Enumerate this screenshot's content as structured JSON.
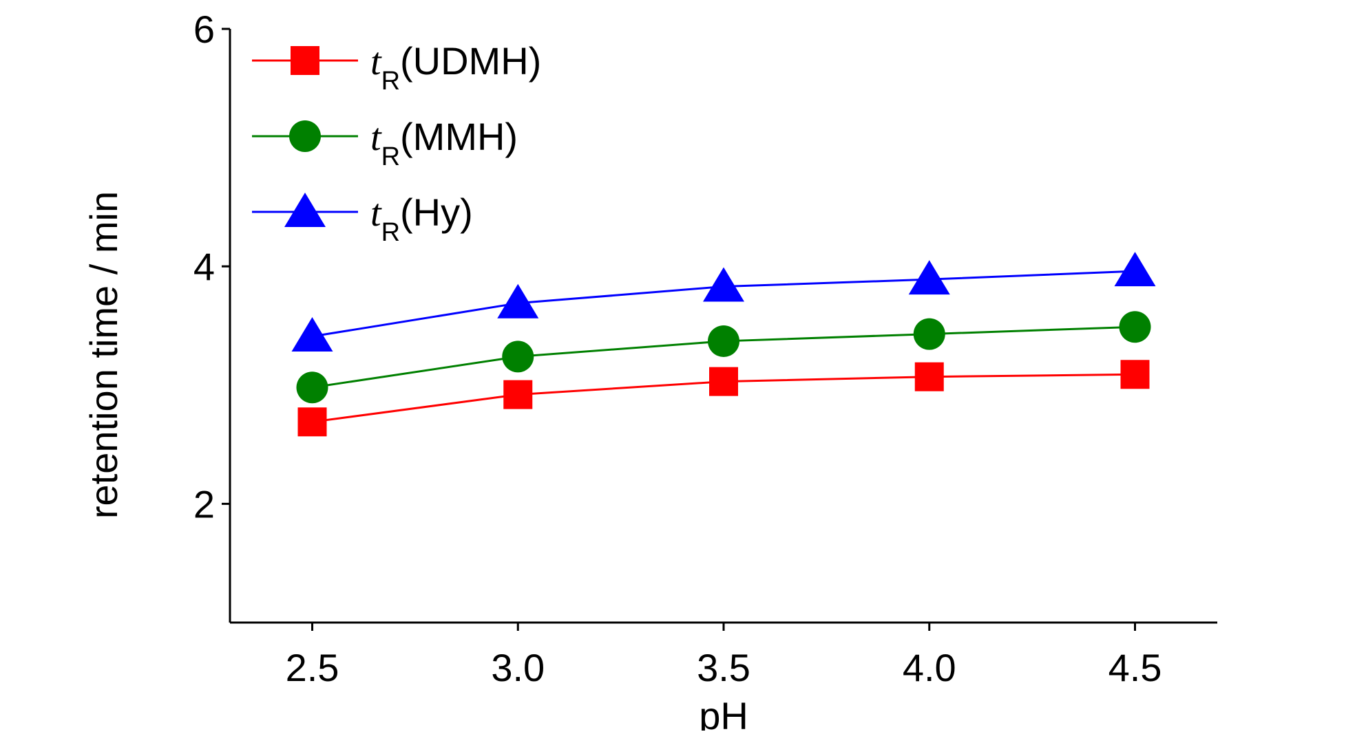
{
  "chart_data": {
    "type": "line",
    "title": "",
    "xlabel": "pH",
    "ylabel": "retention time / min",
    "x": [
      2.5,
      3.0,
      3.5,
      4.0,
      4.5
    ],
    "x_tick_labels": [
      "2.5",
      "3.0",
      "3.5",
      "4.0",
      "4.5"
    ],
    "y_ticks": [
      2,
      4,
      6
    ],
    "y_tick_labels": [
      "2",
      "4",
      "6"
    ],
    "xlim": [
      2.3,
      4.7
    ],
    "ylim": [
      1,
      6
    ],
    "grid": false,
    "legend_position": "top-left",
    "series": [
      {
        "name": "tR(UDMH)",
        "legend_italic": "t",
        "legend_sub": "R",
        "legend_rest": "(UDMH)",
        "marker": "square",
        "color": "#ff0000",
        "values": [
          2.69,
          2.92,
          3.03,
          3.07,
          3.09
        ]
      },
      {
        "name": "tR(MMH)",
        "legend_italic": "t",
        "legend_sub": "R",
        "legend_rest": "(MMH)",
        "marker": "circle",
        "color": "#008000",
        "values": [
          2.98,
          3.24,
          3.37,
          3.43,
          3.49
        ]
      },
      {
        "name": "tR(Hy)",
        "legend_italic": "t",
        "legend_sub": "R",
        "legend_rest": "(Hy)",
        "marker": "triangle",
        "color": "#0000ff",
        "values": [
          3.41,
          3.69,
          3.83,
          3.89,
          3.96
        ]
      }
    ]
  }
}
